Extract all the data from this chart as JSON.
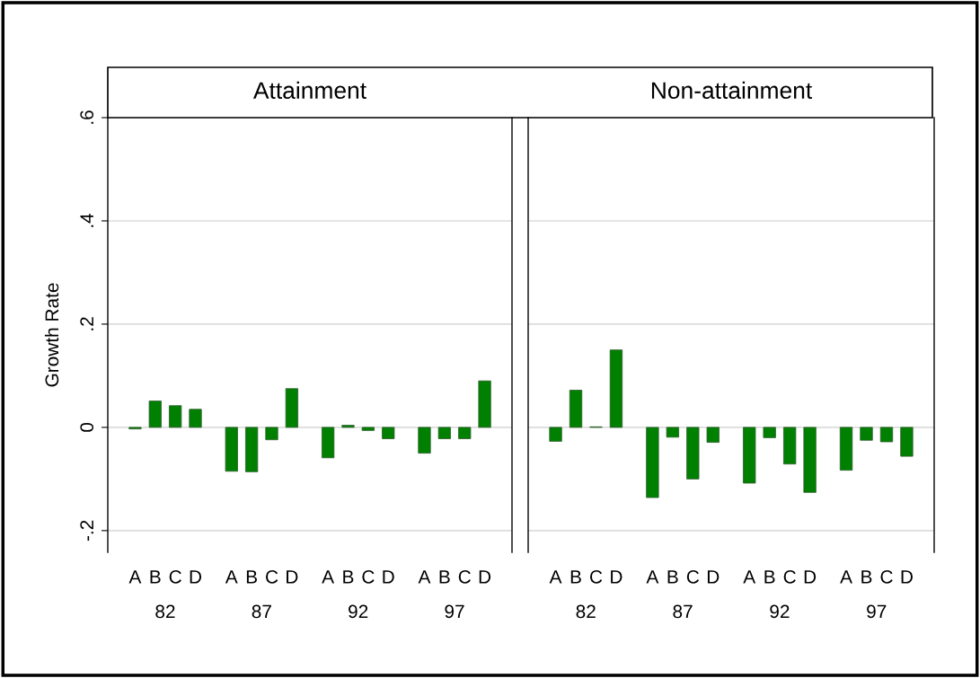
{
  "chart_data": [
    {
      "type": "bar",
      "title": "Attainment",
      "ylabel": "Growth Rate",
      "categories": [
        "A",
        "B",
        "C",
        "D",
        "A",
        "B",
        "C",
        "D",
        "A",
        "B",
        "C",
        "D",
        "A",
        "B",
        "C",
        "D"
      ],
      "values": [
        -0.003,
        0.051,
        0.042,
        0.035,
        -0.085,
        -0.086,
        -0.024,
        0.075,
        -0.059,
        0.004,
        -0.006,
        -0.022,
        -0.05,
        -0.022,
        -0.022,
        0.09
      ],
      "color": "#008000",
      "ylim": [
        -0.242,
        0.6
      ],
      "yticks": [
        {
          "value": -0.2,
          "label": "-.2"
        },
        0,
        {
          "value": 0.2,
          "label": ".2"
        },
        {
          "value": 0.4,
          "label": ".4"
        },
        {
          "value": 0.6,
          "label": ".6"
        }
      ],
      "grid": "y",
      "annotations": [
        "82",
        "87",
        "92",
        "97"
      ]
    },
    {
      "type": "bar",
      "title": "Non-attainment",
      "categories": [
        "A",
        "B",
        "C",
        "D",
        "A",
        "B",
        "C",
        "D",
        "A",
        "B",
        "C",
        "D",
        "A",
        "B",
        "C",
        "D"
      ],
      "values": [
        -0.027,
        0.072,
        0.001,
        0.15,
        -0.136,
        -0.019,
        -0.1,
        -0.029,
        -0.108,
        -0.02,
        -0.071,
        -0.126,
        -0.083,
        -0.025,
        -0.028,
        -0.056
      ],
      "color": "#008000",
      "ylim": [
        -0.242,
        0.6
      ],
      "grid": "y",
      "tick_labels": "x",
      "annotations": [
        "82",
        "87",
        "92",
        "97"
      ]
    }
  ]
}
